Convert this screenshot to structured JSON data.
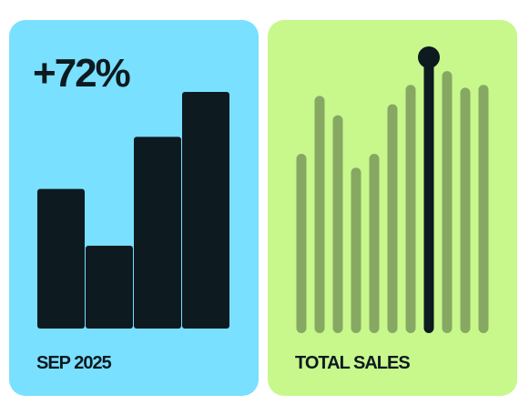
{
  "chart_data": [
    {
      "type": "bar",
      "title": "+72%",
      "label": "SEP 2025",
      "background": "#79e0ff",
      "color": "#0d1a1f",
      "values": [
        59,
        35,
        81,
        100
      ],
      "ylim": [
        0,
        100
      ]
    },
    {
      "type": "lollipop",
      "label": "TOTAL SALES",
      "background": "#c8f78c",
      "color": "#86a862",
      "highlight_index": 7,
      "highlight_color": "#0d1a1f",
      "values": [
        65,
        86,
        79,
        60,
        65,
        83,
        90,
        100,
        95,
        89,
        90
      ],
      "ylim": [
        0,
        100
      ]
    }
  ]
}
